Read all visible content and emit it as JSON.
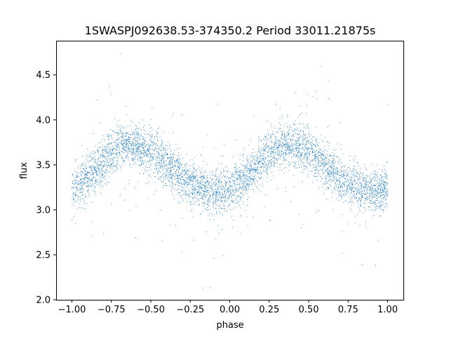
{
  "chart_data": {
    "type": "scatter",
    "title": "1SWASPJ092638.53-374350.2 Period 33011.21875s",
    "xlabel": "phase",
    "ylabel": "flux",
    "xlim": [
      -1.1,
      1.1
    ],
    "ylim": [
      2.0,
      4.88
    ],
    "grid": false,
    "point_color": "#1f77b4",
    "x_ticks": [
      -1.0,
      -0.75,
      -0.5,
      -0.25,
      0.0,
      0.25,
      0.5,
      0.75,
      1.0
    ],
    "x_tick_labels": [
      "−1.00",
      "−0.75",
      "−0.50",
      "−0.25",
      "0.00",
      "0.25",
      "0.50",
      "0.75",
      "1.00"
    ],
    "y_ticks": [
      2.0,
      2.5,
      3.0,
      3.5,
      4.0,
      4.5
    ],
    "y_tick_labels": [
      "2.0",
      "2.5",
      "3.0",
      "3.5",
      "4.0",
      "4.5"
    ],
    "x_range": [
      -1.0,
      1.0
    ],
    "phase_curve": {
      "phase": [
        0.0,
        0.1,
        0.2,
        0.3,
        0.35,
        0.4,
        0.5,
        0.6,
        0.7,
        0.8,
        0.9,
        1.0
      ],
      "flux": [
        3.22,
        3.35,
        3.55,
        3.7,
        3.73,
        3.72,
        3.65,
        3.5,
        3.35,
        3.25,
        3.2,
        3.22
      ]
    },
    "scatter_sigma": 0.12,
    "outlier_range": [
      2.1,
      4.75
    ]
  }
}
